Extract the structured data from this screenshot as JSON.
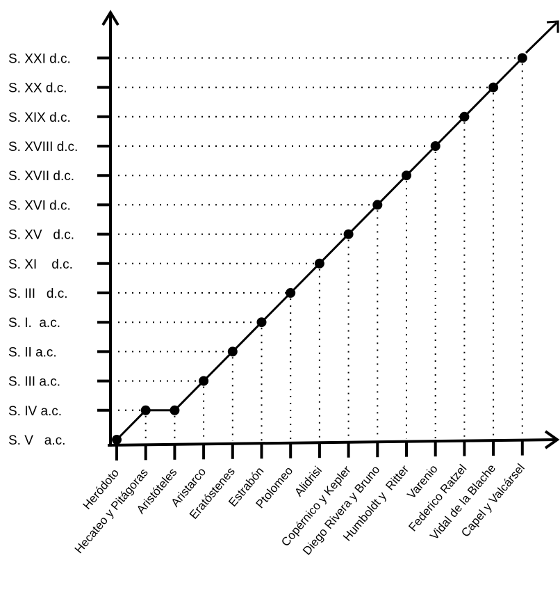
{
  "chart_data": {
    "type": "line",
    "title": "",
    "xlabel": "",
    "ylabel": "",
    "y_categories": [
      "S. V   a.c.",
      "S. IV a.c.",
      "S. III a.c.",
      "S. II a.c.",
      "S. I.  a.c.",
      "S. III   d.c.",
      "S. XI    d.c.",
      "S. XV   d.c.",
      "S. XVI d.c.",
      "S. XVII d.c.",
      "S. XVIII d.c.",
      "S. XIX d.c.",
      "S. XX d.c.",
      "S. XXI d.c."
    ],
    "x_categories": [
      "Heródoto",
      "Hecateo y Pitágoras",
      "Aristóteles",
      "Aristarco",
      "Eratóstenes",
      "Estrabón",
      "Ptolomeo",
      "Alidrisi",
      "Copérnico y Kepler",
      "Diego Rivera y Bruno",
      "Humboldt y  Ritter",
      "Varenio",
      "Federico Ratzel",
      "Vidal de la Blache",
      "Capel y Valcársel"
    ],
    "points": [
      {
        "x": "Heródoto",
        "y": "S. V   a.c."
      },
      {
        "x": "Hecateo y Pitágoras",
        "y": "S. IV a.c."
      },
      {
        "x": "Aristóteles",
        "y": "S. IV a.c."
      },
      {
        "x": "Aristarco",
        "y": "S. III a.c."
      },
      {
        "x": "Eratóstenes",
        "y": "S. II a.c."
      },
      {
        "x": "Estrabón",
        "y": "S. I.  a.c."
      },
      {
        "x": "Ptolomeo",
        "y": "S. III   d.c."
      },
      {
        "x": "Alidrisi",
        "y": "S. XI    d.c."
      },
      {
        "x": "Copérnico y Kepler",
        "y": "S. XV   d.c."
      },
      {
        "x": "Diego Rivera y Bruno",
        "y": "S. XVI d.c."
      },
      {
        "x": "Humboldt y  Ritter",
        "y": "S. XVII d.c."
      },
      {
        "x": "Varenio",
        "y": "S. XVIII d.c."
      },
      {
        "x": "Federico Ratzel",
        "y": "S. XIX d.c."
      },
      {
        "x": "Vidal de la Blache",
        "y": "S. XX d.c."
      },
      {
        "x": "Capel y Valcársel",
        "y": "S. XXI d.c."
      }
    ],
    "grid": false,
    "guide_lines": "dotted",
    "colors": {
      "line": "#000000",
      "marker": "#000000",
      "axis": "#000000",
      "guide": "#000000"
    }
  }
}
